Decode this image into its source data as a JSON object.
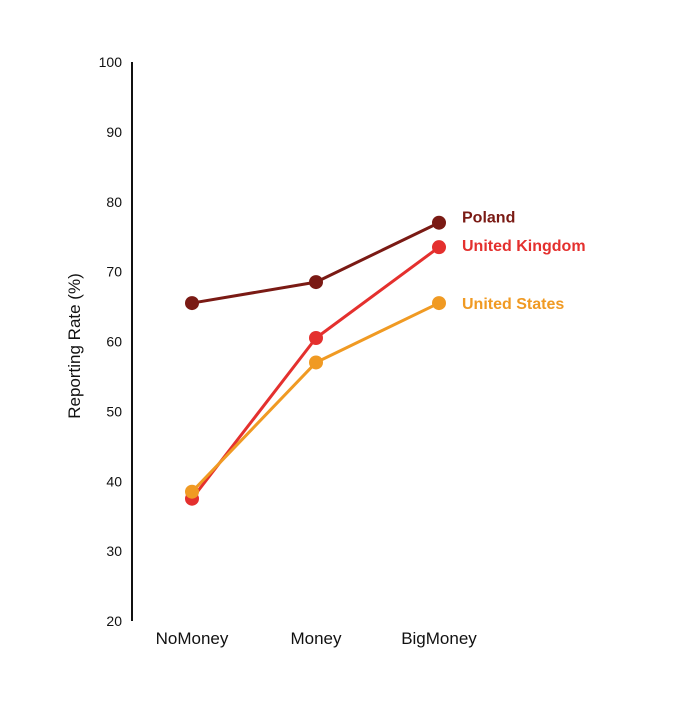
{
  "chart_data": {
    "type": "line",
    "categories": [
      "NoMoney",
      "Money",
      "BigMoney"
    ],
    "ylabel": "Reporting Rate (%)",
    "xlabel": "",
    "ylim": [
      20,
      100
    ],
    "yticks": [
      "20",
      "30",
      "40",
      "50",
      "60",
      "70",
      "80",
      "90",
      "100"
    ],
    "grid": false,
    "legend": "inline labels at right end of lines",
    "series": [
      {
        "name": "Poland",
        "values": [
          65.5,
          68.5,
          77.0
        ],
        "color": "#7a1a14"
      },
      {
        "name": "United Kingdom",
        "values": [
          37.5,
          60.5,
          73.5
        ],
        "color": "#e4302e"
      },
      {
        "name": "United States",
        "values": [
          38.5,
          57.0,
          65.5
        ],
        "color": "#f09a23"
      }
    ]
  }
}
